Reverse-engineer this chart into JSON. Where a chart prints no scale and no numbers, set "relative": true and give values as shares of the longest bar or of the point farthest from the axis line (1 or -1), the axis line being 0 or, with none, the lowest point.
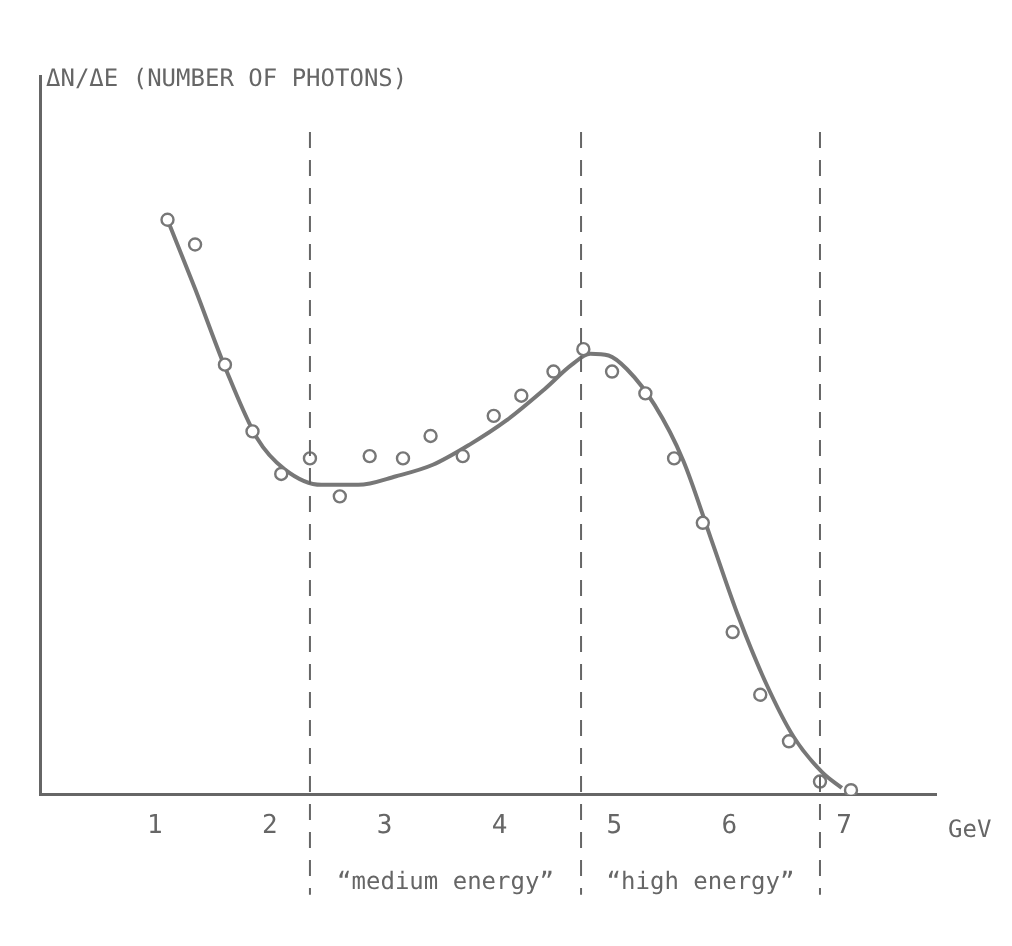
{
  "chart_data": {
    "type": "scatter",
    "relative": true,
    "xlabel": "GeV",
    "xlim": [
      0,
      7.8
    ],
    "xticks": [
      1,
      2,
      3,
      4,
      5,
      6,
      7
    ],
    "grid": false,
    "legend": false,
    "series": [
      {
        "type": "scatter",
        "marker": "circle",
        "color": "#777777",
        "x": [
          1.11,
          1.35,
          1.61,
          1.85,
          2.1,
          2.35,
          2.61,
          2.87,
          3.16,
          3.4,
          3.68,
          3.95,
          4.19,
          4.47,
          4.73,
          4.98,
          5.27,
          5.52,
          5.77,
          6.03,
          6.27,
          6.52,
          6.79,
          7.06
        ],
        "values": [
          1.0,
          0.957,
          0.748,
          0.632,
          0.558,
          0.585,
          0.519,
          0.589,
          0.585,
          0.624,
          0.589,
          0.659,
          0.694,
          0.736,
          0.775,
          0.736,
          0.698,
          0.585,
          0.473,
          0.283,
          0.174,
          0.093,
          0.023,
          0.008
        ]
      },
      {
        "type": "line",
        "marker": "none",
        "color": "#777777",
        "x": [
          1.11,
          1.35,
          1.61,
          1.89,
          2.13,
          2.45,
          2.77,
          3.1,
          3.42,
          3.74,
          4.06,
          4.39,
          4.63,
          4.79,
          4.95,
          5.11,
          5.35,
          5.6,
          5.84,
          6.08,
          6.32,
          6.56,
          6.81,
          6.98
        ],
        "values": [
          1.0,
          0.88,
          0.744,
          0.62,
          0.566,
          0.539,
          0.539,
          0.554,
          0.574,
          0.609,
          0.651,
          0.705,
          0.748,
          0.767,
          0.764,
          0.74,
          0.678,
          0.581,
          0.446,
          0.31,
          0.194,
          0.101,
          0.039,
          0.012
        ]
      }
    ],
    "ref_lines": [
      {
        "axis": "x",
        "value": 2.35,
        "line_style": "dashed"
      },
      {
        "axis": "x",
        "value": 4.71,
        "line_style": "dashed"
      },
      {
        "axis": "x",
        "value": 6.79,
        "line_style": "dashed"
      }
    ],
    "annotations": [
      "ΔN/ΔE (NUMBER OF PHOTONS)",
      "“medium energy”",
      "“high energy”"
    ]
  }
}
